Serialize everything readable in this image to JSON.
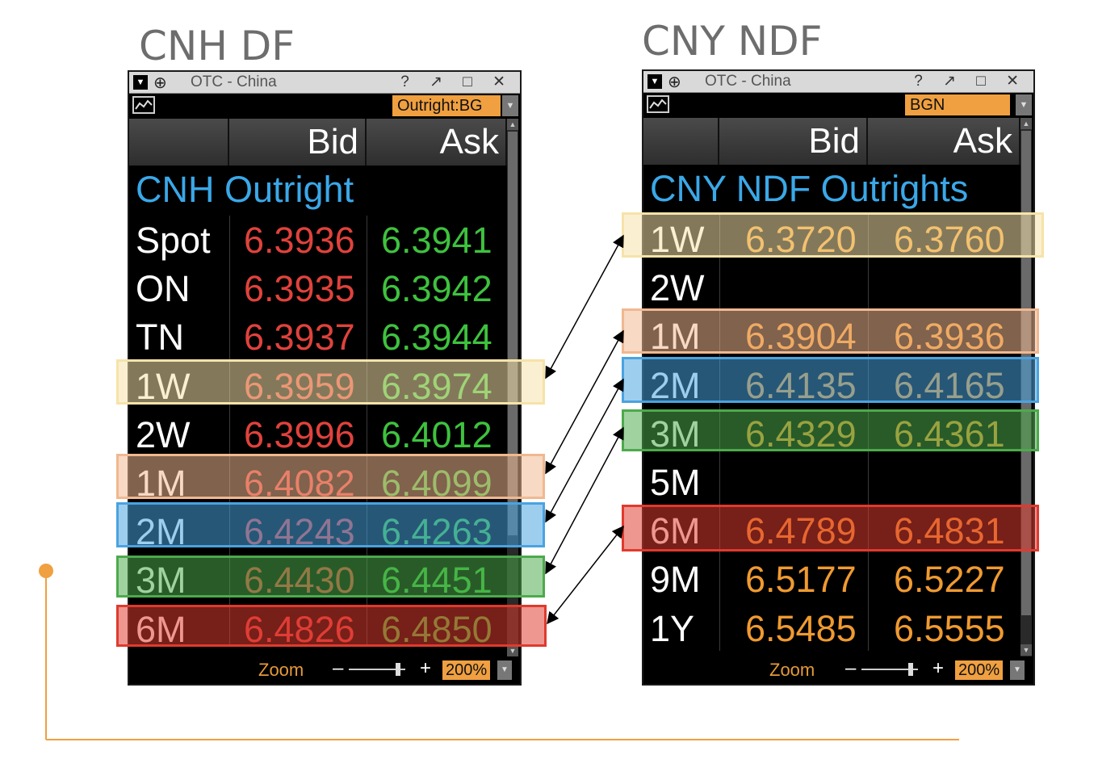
{
  "left": {
    "caption": "CNH DF",
    "window_title": "OTC - China",
    "window_controls": "? ↗ □ ✕",
    "selector": "Outright:BG",
    "header": {
      "bid": "Bid",
      "ask": "Ask"
    },
    "section": "CNH Outright",
    "rows": [
      {
        "label": "Spot",
        "bid": "6.3936",
        "ask": "6.3941"
      },
      {
        "label": "ON",
        "bid": "6.3935",
        "ask": "6.3942"
      },
      {
        "label": "TN",
        "bid": "6.3937",
        "ask": "6.3944"
      },
      {
        "label": "1W",
        "bid": "6.3959",
        "ask": "6.3974"
      },
      {
        "label": "2W",
        "bid": "6.3996",
        "ask": "6.4012"
      },
      {
        "label": "1M",
        "bid": "6.4082",
        "ask": "6.4099"
      },
      {
        "label": "2M",
        "bid": "6.4243",
        "ask": "6.4263"
      },
      {
        "label": "3M",
        "bid": "6.4430",
        "ask": "6.4451"
      },
      {
        "label": "6M",
        "bid": "6.4826",
        "ask": "6.4850"
      }
    ],
    "zoom_label": "Zoom",
    "zoom_value": "200%"
  },
  "right": {
    "caption": "CNY NDF",
    "window_title": "OTC - China",
    "window_controls": "? ↗ □ ✕",
    "selector": "BGN",
    "header": {
      "bid": "Bid",
      "ask": "Ask"
    },
    "section": "CNY NDF Outrights",
    "rows": [
      {
        "label": "1W",
        "bid": "6.3720",
        "ask": "6.3760"
      },
      {
        "label": "2W",
        "bid": "",
        "ask": ""
      },
      {
        "label": "1M",
        "bid": "6.3904",
        "ask": "6.3936"
      },
      {
        "label": "2M",
        "bid": "6.4135",
        "ask": "6.4165"
      },
      {
        "label": "3M",
        "bid": "6.4329",
        "ask": "6.4361"
      },
      {
        "label": "5M",
        "bid": "",
        "ask": ""
      },
      {
        "label": "6M",
        "bid": "6.4789",
        "ask": "6.4831"
      },
      {
        "label": "9M",
        "bid": "6.5177",
        "ask": "6.5227"
      },
      {
        "label": "1Y",
        "bid": "6.5485",
        "ask": "6.5555"
      }
    ],
    "zoom_label": "Zoom",
    "zoom_value": "200%"
  },
  "colors": {
    "bid_red": "#e0423c",
    "ask_green": "#3ec23e",
    "ndf_orange": "#f09a30",
    "section_blue": "#3aa8e8",
    "timeline_orange": "#f0a040",
    "highlight_1W": "#f6e3a8",
    "highlight_1M": "#f0b890",
    "highlight_2M": "#4aa3e0",
    "highlight_3M": "#4caa4c",
    "highlight_6M": "#e03a2e"
  }
}
